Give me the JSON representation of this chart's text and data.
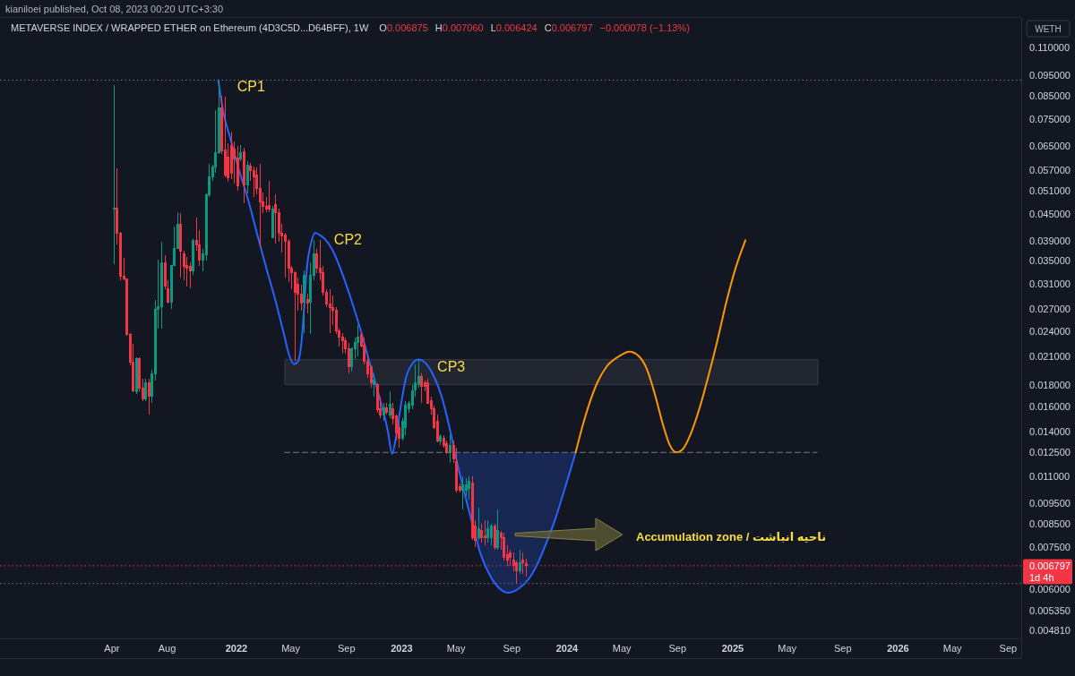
{
  "chart_data": {
    "type": "candlestick",
    "title": "METAVERSE INDEX / WRAPPED ETHER on Ethereum (4D3C5D...D64BFF), 1W",
    "subtitle": "kianiloei published, Oct 08, 2023 00:20 UTC+3:30",
    "ylabel": "WETH",
    "log": "y",
    "xlim": [
      "2020-07-28",
      "2026-09-30"
    ],
    "ylim": [
      0.0046,
      0.128
    ],
    "xticks": [
      {
        "value": "2021-04-01",
        "label": "Apr"
      },
      {
        "value": "2021-08-01",
        "label": "Aug"
      },
      {
        "value": "2022-01-01",
        "label": "2022"
      },
      {
        "value": "2022-05-01",
        "label": "May"
      },
      {
        "value": "2022-09-01",
        "label": "Sep"
      },
      {
        "value": "2023-01-01",
        "label": "2023"
      },
      {
        "value": "2023-05-01",
        "label": "May"
      },
      {
        "value": "2023-09-01",
        "label": "Sep"
      },
      {
        "value": "2024-01-01",
        "label": "2024"
      },
      {
        "value": "2024-05-01",
        "label": "May"
      },
      {
        "value": "2024-09-01",
        "label": "Sep"
      },
      {
        "value": "2025-01-01",
        "label": "2025"
      },
      {
        "value": "2025-05-01",
        "label": "May"
      },
      {
        "value": "2025-09-01",
        "label": "Sep"
      },
      {
        "value": "2026-01-01",
        "label": "2026"
      },
      {
        "value": "2026-05-01",
        "label": "May"
      },
      {
        "value": "2026-09-01",
        "label": "Sep"
      }
    ],
    "yticks": [
      {
        "value": 0.11,
        "label": "0.110000"
      },
      {
        "value": 0.095,
        "label": "0.095000"
      },
      {
        "value": 0.085,
        "label": "0.085000"
      },
      {
        "value": 0.075,
        "label": "0.075000"
      },
      {
        "value": 0.065,
        "label": "0.065000"
      },
      {
        "value": 0.057,
        "label": "0.057000"
      },
      {
        "value": 0.051,
        "label": "0.051000"
      },
      {
        "value": 0.045,
        "label": "0.045000"
      },
      {
        "value": 0.039,
        "label": "0.039000"
      },
      {
        "value": 0.035,
        "label": "0.035000"
      },
      {
        "value": 0.031,
        "label": "0.031000"
      },
      {
        "value": 0.027,
        "label": "0.027000"
      },
      {
        "value": 0.024,
        "label": "0.024000"
      },
      {
        "value": 0.021,
        "label": "0.021000"
      },
      {
        "value": 0.018,
        "label": "0.018000"
      },
      {
        "value": 0.016,
        "label": "0.016000"
      },
      {
        "value": 0.014,
        "label": "0.014000"
      },
      {
        "value": 0.0125,
        "label": "0.012500"
      },
      {
        "value": 0.011,
        "label": "0.011000"
      },
      {
        "value": 0.0095,
        "label": "0.009500"
      },
      {
        "value": 0.0085,
        "label": "0.008500"
      },
      {
        "value": 0.0075,
        "label": "0.007500"
      },
      {
        "value": 0.006,
        "label": "0.006000"
      },
      {
        "value": 0.00535,
        "label": "0.005350"
      },
      {
        "value": 0.00481,
        "label": "0.004810"
      }
    ],
    "x": [
      "2021-04-05",
      "2021-04-12",
      "2021-04-19",
      "2021-04-26",
      "2021-05-03",
      "2021-05-10",
      "2021-05-17",
      "2021-05-24",
      "2021-05-31",
      "2021-06-07",
      "2021-06-14",
      "2021-06-21",
      "2021-06-28",
      "2021-07-05",
      "2021-07-12",
      "2021-07-19",
      "2021-07-26",
      "2021-08-02",
      "2021-08-09",
      "2021-08-16",
      "2021-08-23",
      "2021-08-30",
      "2021-09-06",
      "2021-09-13",
      "2021-09-20",
      "2021-09-27",
      "2021-10-04",
      "2021-10-11",
      "2021-10-18",
      "2021-10-25",
      "2021-11-01",
      "2021-11-08",
      "2021-11-15",
      "2021-11-22",
      "2021-11-29",
      "2021-12-06",
      "2021-12-13",
      "2021-12-20",
      "2021-12-27",
      "2022-01-03",
      "2022-01-10",
      "2022-01-17",
      "2022-01-24",
      "2022-01-31",
      "2022-02-07",
      "2022-02-14",
      "2022-02-21",
      "2022-02-28",
      "2022-03-07",
      "2022-03-14",
      "2022-03-21",
      "2022-03-28",
      "2022-04-04",
      "2022-04-11",
      "2022-04-18",
      "2022-04-25",
      "2022-05-02",
      "2022-05-09",
      "2022-05-16",
      "2022-05-23",
      "2022-05-30",
      "2022-06-06",
      "2022-06-13",
      "2022-06-20",
      "2022-06-27",
      "2022-07-04",
      "2022-07-11",
      "2022-07-18",
      "2022-07-25",
      "2022-08-01",
      "2022-08-08",
      "2022-08-15",
      "2022-08-22",
      "2022-08-29",
      "2022-09-05",
      "2022-09-12",
      "2022-09-19",
      "2022-09-26",
      "2022-10-03",
      "2022-10-10",
      "2022-10-17",
      "2022-10-24",
      "2022-10-31",
      "2022-11-07",
      "2022-11-14",
      "2022-11-21",
      "2022-11-28",
      "2022-12-05",
      "2022-12-12",
      "2022-12-19",
      "2022-12-26",
      "2023-01-02",
      "2023-01-09",
      "2023-01-16",
      "2023-01-23",
      "2023-01-30",
      "2023-02-06",
      "2023-02-13",
      "2023-02-20",
      "2023-02-27",
      "2023-03-06",
      "2023-03-13",
      "2023-03-20",
      "2023-03-27",
      "2023-04-03",
      "2023-04-10",
      "2023-04-17",
      "2023-04-24",
      "2023-05-01",
      "2023-05-08",
      "2023-05-15",
      "2023-05-22",
      "2023-05-29",
      "2023-06-05",
      "2023-06-12",
      "2023-06-19",
      "2023-06-26",
      "2023-07-03",
      "2023-07-10",
      "2023-07-17",
      "2023-07-24",
      "2023-07-31",
      "2023-08-07",
      "2023-08-14",
      "2023-08-21",
      "2023-08-28",
      "2023-09-04",
      "2023-09-11",
      "2023-09-18",
      "2023-09-25",
      "2023-10-02"
    ],
    "ohlc": [
      [
        0.0463,
        0.0899,
        0.0344,
        0.0465
      ],
      [
        0.0465,
        0.0575,
        0.0382,
        0.0407
      ],
      [
        0.0407,
        0.041,
        0.0315,
        0.0323
      ],
      [
        0.0323,
        0.0355,
        0.0315,
        0.0317
      ],
      [
        0.0317,
        0.0319,
        0.0234,
        0.0236
      ],
      [
        0.0236,
        0.0238,
        0.02,
        0.0203
      ],
      [
        0.0203,
        0.0224,
        0.0173,
        0.0174
      ],
      [
        0.0173,
        0.0209,
        0.0171,
        0.0207
      ],
      [
        0.0207,
        0.0209,
        0.0174,
        0.0177
      ],
      [
        0.0177,
        0.0186,
        0.0165,
        0.0167
      ],
      [
        0.0167,
        0.0186,
        0.0165,
        0.0182
      ],
      [
        0.0182,
        0.0186,
        0.0153,
        0.0169
      ],
      [
        0.0169,
        0.0195,
        0.0163,
        0.0191
      ],
      [
        0.0191,
        0.0284,
        0.0184,
        0.027
      ],
      [
        0.027,
        0.0352,
        0.0243,
        0.0274
      ],
      [
        0.0274,
        0.0388,
        0.0243,
        0.0347
      ],
      [
        0.0347,
        0.0361,
        0.03,
        0.0305
      ],
      [
        0.0302,
        0.0315,
        0.0279,
        0.0281
      ],
      [
        0.0281,
        0.0343,
        0.027,
        0.0342
      ],
      [
        0.0342,
        0.0421,
        0.034,
        0.0375
      ],
      [
        0.0375,
        0.0454,
        0.0373,
        0.0427
      ],
      [
        0.0427,
        0.0452,
        0.032,
        0.0369
      ],
      [
        0.0364,
        0.0369,
        0.0315,
        0.034
      ],
      [
        0.0342,
        0.0357,
        0.0305,
        0.0336
      ],
      [
        0.034,
        0.0347,
        0.0302,
        0.0332
      ],
      [
        0.0332,
        0.0393,
        0.0324,
        0.0391
      ],
      [
        0.0391,
        0.0441,
        0.0369,
        0.0382
      ],
      [
        0.0382,
        0.0413,
        0.034,
        0.0352
      ],
      [
        0.0352,
        0.0373,
        0.0331,
        0.0364
      ],
      [
        0.0362,
        0.0502,
        0.035,
        0.05
      ],
      [
        0.05,
        0.0589,
        0.0493,
        0.055
      ],
      [
        0.055,
        0.0586,
        0.0537,
        0.058
      ],
      [
        0.058,
        0.0789,
        0.0561,
        0.0627
      ],
      [
        0.0627,
        0.0925,
        0.0621,
        0.0797
      ],
      [
        0.0797,
        0.0849,
        0.0621,
        0.0633
      ],
      [
        0.0636,
        0.0845,
        0.0548,
        0.0556
      ],
      [
        0.0612,
        0.0658,
        0.0535,
        0.0548
      ],
      [
        0.0651,
        0.07,
        0.0543,
        0.0561
      ],
      [
        0.0639,
        0.0664,
        0.053,
        0.0606
      ],
      [
        0.0609,
        0.0648,
        0.051,
        0.0525
      ],
      [
        0.0606,
        0.0651,
        0.0597,
        0.0627
      ],
      [
        0.063,
        0.0642,
        0.0477,
        0.0527
      ],
      [
        0.0527,
        0.0597,
        0.0502,
        0.0586
      ],
      [
        0.0583,
        0.0592,
        0.0537,
        0.0569
      ],
      [
        0.0569,
        0.058,
        0.0493,
        0.0551
      ],
      [
        0.0556,
        0.0578,
        0.05,
        0.0517
      ],
      [
        0.0517,
        0.0589,
        0.0375,
        0.0481
      ],
      [
        0.0481,
        0.0505,
        0.0452,
        0.047
      ],
      [
        0.047,
        0.0493,
        0.0454,
        0.0463
      ],
      [
        0.0472,
        0.0537,
        0.0454,
        0.0463
      ],
      [
        0.0397,
        0.047,
        0.0395,
        0.0463
      ],
      [
        0.0474,
        0.05,
        0.0384,
        0.0454
      ],
      [
        0.0454,
        0.0463,
        0.0388,
        0.0407
      ],
      [
        0.0407,
        0.0427,
        0.0366,
        0.0401
      ],
      [
        0.0403,
        0.0407,
        0.032,
        0.0388
      ],
      [
        0.0388,
        0.0393,
        0.0312,
        0.0336
      ],
      [
        0.0336,
        0.034,
        0.03,
        0.0328
      ],
      [
        0.0329,
        0.0331,
        0.0205,
        0.0295
      ],
      [
        0.0309,
        0.032,
        0.0268,
        0.0293
      ],
      [
        0.0293,
        0.0308,
        0.0268,
        0.0279
      ],
      [
        0.0281,
        0.0332,
        0.0237,
        0.0324
      ],
      [
        0.0284,
        0.0293,
        0.0264,
        0.0279
      ],
      [
        0.0281,
        0.0347,
        0.0236,
        0.0324
      ],
      [
        0.0324,
        0.0391,
        0.0315,
        0.0364
      ],
      [
        0.0364,
        0.0373,
        0.0328,
        0.0336
      ],
      [
        0.0336,
        0.0391,
        0.0315,
        0.0328
      ],
      [
        0.0328,
        0.034,
        0.029,
        0.0295
      ],
      [
        0.0295,
        0.03,
        0.0273,
        0.0277
      ],
      [
        0.0277,
        0.03,
        0.0237,
        0.0273
      ],
      [
        0.0273,
        0.029,
        0.0248,
        0.0268
      ],
      [
        0.0268,
        0.0273,
        0.0236,
        0.024
      ],
      [
        0.024,
        0.0243,
        0.0221,
        0.0232
      ],
      [
        0.0232,
        0.0237,
        0.0213,
        0.0228
      ],
      [
        0.0228,
        0.0232,
        0.0213,
        0.0218
      ],
      [
        0.0218,
        0.0225,
        0.0191,
        0.0198
      ],
      [
        0.0198,
        0.022,
        0.0193,
        0.0218
      ],
      [
        0.0218,
        0.0232,
        0.0207,
        0.0226
      ],
      [
        0.0226,
        0.0248,
        0.021,
        0.0232
      ],
      [
        0.0236,
        0.0237,
        0.022,
        0.0221
      ],
      [
        0.0223,
        0.0232,
        0.0201,
        0.0204
      ],
      [
        0.0204,
        0.021,
        0.0187,
        0.0191
      ],
      [
        0.0198,
        0.02,
        0.0177,
        0.0182
      ],
      [
        0.018,
        0.0191,
        0.0169,
        0.0184
      ],
      [
        0.018,
        0.0181,
        0.0155,
        0.0157
      ],
      [
        0.0158,
        0.0169,
        0.015,
        0.0153
      ],
      [
        0.0153,
        0.0163,
        0.0148,
        0.0159
      ],
      [
        0.0159,
        0.0163,
        0.0153,
        0.0155
      ],
      [
        0.0153,
        0.0174,
        0.015,
        0.0162
      ],
      [
        0.0158,
        0.0163,
        0.0145,
        0.015
      ],
      [
        0.0152,
        0.0153,
        0.0133,
        0.0139
      ],
      [
        0.0143,
        0.0148,
        0.0128,
        0.0135
      ],
      [
        0.0135,
        0.015,
        0.0133,
        0.0148
      ],
      [
        0.0143,
        0.0165,
        0.0137,
        0.0161
      ],
      [
        0.0158,
        0.0165,
        0.0155,
        0.0163
      ],
      [
        0.0161,
        0.018,
        0.0158,
        0.0174
      ],
      [
        0.0175,
        0.0201,
        0.0169,
        0.0182
      ],
      [
        0.018,
        0.0207,
        0.0177,
        0.0188
      ],
      [
        0.0188,
        0.0191,
        0.0163,
        0.0178
      ],
      [
        0.0182,
        0.0184,
        0.0174,
        0.0178
      ],
      [
        0.0182,
        0.0186,
        0.0162,
        0.0163
      ],
      [
        0.0165,
        0.0169,
        0.0153,
        0.0158
      ],
      [
        0.0158,
        0.0161,
        0.0142,
        0.0143
      ],
      [
        0.0148,
        0.0153,
        0.0132,
        0.0133
      ],
      [
        0.0133,
        0.0138,
        0.013,
        0.0136
      ],
      [
        0.0135,
        0.0137,
        0.0128,
        0.013
      ],
      [
        0.0131,
        0.0133,
        0.0124,
        0.0125
      ],
      [
        0.0125,
        0.0138,
        0.0118,
        0.013
      ],
      [
        0.013,
        0.0133,
        0.0118,
        0.0121
      ],
      [
        0.0119,
        0.0128,
        0.0101,
        0.0102
      ],
      [
        0.0104,
        0.0106,
        0.0101,
        0.0102
      ],
      [
        0.0102,
        0.011,
        0.0092,
        0.0105
      ],
      [
        0.0102,
        0.0109,
        0.0099,
        0.0105
      ],
      [
        0.0103,
        0.011,
        0.0097,
        0.0107
      ],
      [
        0.0106,
        0.011,
        0.0078,
        0.0079
      ],
      [
        0.0084,
        0.0087,
        0.0075,
        0.0078
      ],
      [
        0.0079,
        0.0093,
        0.0078,
        0.0083
      ],
      [
        0.0082,
        0.0085,
        0.0077,
        0.0079
      ],
      [
        0.008,
        0.0087,
        0.0076,
        0.0079
      ],
      [
        0.0079,
        0.0087,
        0.0077,
        0.0083
      ],
      [
        0.0079,
        0.0085,
        0.0076,
        0.0084
      ],
      [
        0.0084,
        0.0085,
        0.0074,
        0.0075
      ],
      [
        0.0075,
        0.0092,
        0.0074,
        0.0082
      ],
      [
        0.0081,
        0.0082,
        0.0074,
        0.0079
      ],
      [
        0.0079,
        0.0081,
        0.007,
        0.0071
      ],
      [
        0.0072,
        0.0076,
        0.0068,
        0.007
      ],
      [
        0.0073,
        0.0074,
        0.0068,
        0.0071
      ],
      [
        0.007,
        0.0073,
        0.0066,
        0.0068
      ],
      [
        0.0069,
        0.007,
        0.00618,
        0.0066
      ],
      [
        0.0066,
        0.0074,
        0.0065,
        0.0069
      ],
      [
        0.007,
        0.0073,
        0.0065,
        0.0069
      ],
      [
        0.006875,
        0.00706,
        0.006424,
        0.006797
      ]
    ],
    "colors": [
      "#089981",
      "#f23645",
      "#f23645",
      "#f23645",
      "#f23645",
      "#f23645",
      "#f23645",
      "#089981",
      "#f23645",
      "#f23645",
      "#089981",
      "#f23645",
      "#089981",
      "#089981",
      "#089981",
      "#089981",
      "#f23645",
      "#f23645",
      "#089981",
      "#089981",
      "#089981",
      "#f23645",
      "#f23645",
      "#f23645",
      "#f23645",
      "#089981",
      "#f23645",
      "#f23645",
      "#089981",
      "#089981",
      "#089981",
      "#089981",
      "#089981",
      "#089981",
      "#f23645",
      "#f23645",
      "#f23645",
      "#f23645",
      "#f23645",
      "#f23645",
      "#089981",
      "#f23645",
      "#089981",
      "#f23645",
      "#f23645",
      "#f23645",
      "#f23645",
      "#f23645",
      "#f23645",
      "#f23645",
      "#089981",
      "#f23645",
      "#f23645",
      "#f23645",
      "#f23645",
      "#f23645",
      "#f23645",
      "#f23645",
      "#f23645",
      "#f23645",
      "#089981",
      "#f23645",
      "#089981",
      "#089981",
      "#f23645",
      "#f23645",
      "#f23645",
      "#f23645",
      "#f23645",
      "#f23645",
      "#f23645",
      "#f23645",
      "#f23645",
      "#f23645",
      "#f23645",
      "#089981",
      "#089981",
      "#089981",
      "#f23645",
      "#f23645",
      "#f23645",
      "#f23645",
      "#089981",
      "#f23645",
      "#f23645",
      "#089981",
      "#f23645",
      "#089981",
      "#f23645",
      "#f23645",
      "#f23645",
      "#089981",
      "#089981",
      "#089981",
      "#089981",
      "#089981",
      "#089981",
      "#f23645",
      "#f23645",
      "#f23645",
      "#f23645",
      "#f23645",
      "#f23645",
      "#089981",
      "#f23645",
      "#f23645",
      "#089981",
      "#f23645",
      "#f23645",
      "#f23645",
      "#089981",
      "#089981",
      "#089981",
      "#f23645",
      "#f23645",
      "#089981",
      "#f23645",
      "#f23645",
      "#089981",
      "#089981",
      "#f23645",
      "#089981",
      "#f23645",
      "#f23645",
      "#f23645",
      "#f23645",
      "#f23645",
      "#f23645",
      "#089981",
      "#f23645",
      "#f23645"
    ],
    "series": [
      {
        "type": "line",
        "color": "#787b86",
        "line_style": "dashed",
        "x": [
          "2022-04-17",
          "2025-07-06"
        ],
        "values": [
          0.0125,
          0.0125
        ]
      },
      {
        "type": "line",
        "color": "#2962ff",
        "x": [
          "2021-11-22",
          "2021-12-04",
          "2021-12-18",
          "2022-01-07",
          "2022-01-27",
          "2022-02-15",
          "2022-03-07",
          "2022-03-27",
          "2022-04-16",
          "2022-04-28",
          "2022-05-08",
          "2022-05-17",
          "2022-05-25",
          "2022-05-31",
          "2022-06-06",
          "2022-06-14",
          "2022-06-24",
          "2022-07-06",
          "2022-07-16",
          "2022-08-05",
          "2022-08-24",
          "2022-09-13",
          "2022-10-03",
          "2022-10-23",
          "2022-11-11",
          "2022-12-01",
          "2022-12-11",
          "2022-12-19",
          "2022-12-29",
          "2023-01-10",
          "2023-01-24",
          "2023-02-07",
          "2023-02-18",
          "2023-03-10",
          "2023-03-30",
          "2023-04-19",
          "2023-04-29",
          "2023-05-16",
          "2023-06-05",
          "2023-06-25",
          "2023-07-15",
          "2023-08-04",
          "2023-08-25",
          "2023-09-18",
          "2023-10-08",
          "2023-10-28",
          "2023-11-16",
          "2023-12-06",
          "2023-12-26",
          "2024-01-10",
          "2024-01-20"
        ],
        "values": [
          0.0925,
          0.0771,
          0.068,
          0.0569,
          0.0486,
          0.0407,
          0.034,
          0.0286,
          0.0236,
          0.021,
          0.0201,
          0.0204,
          0.0228,
          0.0277,
          0.034,
          0.0382,
          0.0407,
          0.0401,
          0.0393,
          0.0364,
          0.0324,
          0.0281,
          0.024,
          0.0201,
          0.0171,
          0.0141,
          0.0124,
          0.0135,
          0.0158,
          0.0186,
          0.0201,
          0.0206,
          0.0204,
          0.0191,
          0.0169,
          0.0139,
          0.0124,
          0.0104,
          0.0086,
          0.0072,
          0.00645,
          0.00603,
          0.00588,
          0.00603,
          0.00632,
          0.00687,
          0.00767,
          0.00873,
          0.0102,
          0.0115,
          0.0125
        ],
        "lower": [
          null,
          null,
          null,
          null,
          null,
          null,
          null,
          null,
          null,
          null,
          null,
          null,
          null,
          null,
          null,
          null,
          null,
          null,
          null,
          null,
          null,
          null,
          null,
          null,
          null,
          null,
          null,
          null,
          null,
          null,
          null,
          null,
          null,
          null,
          null,
          null,
          0.0124,
          0.0104,
          0.0086,
          0.0072,
          0.00645,
          0.00603,
          0.00588,
          0.00603,
          0.00632,
          0.00687,
          0.00767,
          0.00873,
          0.0102,
          0.0115,
          0.0125
        ],
        "upper": [
          null,
          null,
          null,
          null,
          null,
          null,
          null,
          null,
          null,
          null,
          null,
          null,
          null,
          null,
          null,
          null,
          null,
          null,
          null,
          null,
          null,
          null,
          null,
          null,
          null,
          null,
          null,
          null,
          null,
          null,
          null,
          null,
          null,
          null,
          null,
          null,
          0.0125,
          0.0125,
          0.0125,
          0.0125,
          0.0125,
          0.0125,
          0.0125,
          0.0125,
          0.0125,
          0.0125,
          0.0125,
          0.0125,
          0.0125,
          0.0125,
          0.0125
        ]
      },
      {
        "type": "line",
        "color": "#ff9800",
        "x": [
          "2024-01-20",
          "2024-02-09",
          "2024-03-08",
          "2024-03-28",
          "2024-04-23",
          "2024-05-18",
          "2024-06-07",
          "2024-06-25",
          "2024-07-13",
          "2024-07-31",
          "2024-08-15",
          "2024-08-29",
          "2024-09-12",
          "2024-09-30",
          "2024-10-20",
          "2024-11-08",
          "2024-11-28",
          "2024-12-18",
          "2025-01-07",
          "2025-01-29"
        ],
        "values": [
          0.0125,
          0.015,
          0.0182,
          0.0198,
          0.0209,
          0.0215,
          0.021,
          0.0196,
          0.0171,
          0.0145,
          0.013,
          0.0125,
          0.0127,
          0.0138,
          0.0159,
          0.0188,
          0.0228,
          0.0281,
          0.0336,
          0.0391
        ]
      }
    ],
    "bands": [
      {
        "axis": "y",
        "from": 0.018,
        "to": 0.0206,
        "color": "#222631"
      }
    ],
    "ref_lines": [
      {
        "axis": "y",
        "value": 0.0925,
        "color": "#787b86",
        "line_style": "dotted"
      },
      {
        "axis": "y",
        "value": 0.00618,
        "color": "#787b86",
        "line_style": "dotted"
      },
      {
        "axis": "y",
        "value": 0.006797,
        "label": "0.006797\n1d 4h",
        "color": "#f23645",
        "line_style": "dotted"
      }
    ],
    "annotations": [
      {
        "text": "CP1",
        "x": "2021-11-22",
        "y": 0.0925
      },
      {
        "text": "CP2",
        "x": "2022-06-24",
        "y": 0.0407
      },
      {
        "text": "CP3",
        "x": "2023-02-07",
        "y": 0.0206
      },
      "Accumulation zone / ناحیه انباشت",
      "O0.006875",
      "H0.007060",
      "L0.006424",
      "C0.006797",
      "−0.000078 (−1.13%)"
    ]
  }
}
